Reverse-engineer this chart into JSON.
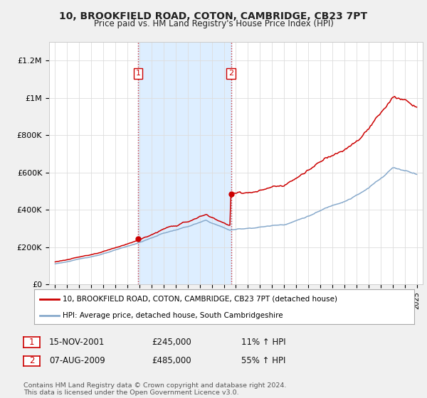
{
  "title": "10, BROOKFIELD ROAD, COTON, CAMBRIDGE, CB23 7PT",
  "subtitle": "Price paid vs. HM Land Registry's House Price Index (HPI)",
  "ylim": [
    0,
    1300000
  ],
  "yticks": [
    0,
    200000,
    400000,
    600000,
    800000,
    1000000,
    1200000
  ],
  "ytick_labels": [
    "£0",
    "£200K",
    "£400K",
    "£600K",
    "£800K",
    "£1M",
    "£1.2M"
  ],
  "purchase1_x": 2001.88,
  "purchase2_x": 2009.6,
  "purchase1_price": 245000,
  "purchase2_price": 485000,
  "line_color_property": "#cc0000",
  "line_color_hpi": "#88aacc",
  "shade_color": "#ddeeff",
  "legend_property": "10, BROOKFIELD ROAD, COTON, CAMBRIDGE, CB23 7PT (detached house)",
  "legend_hpi": "HPI: Average price, detached house, South Cambridgeshire",
  "p1_date": "15-NOV-2001",
  "p2_date": "07-AUG-2009",
  "p1_price_str": "£245,000",
  "p2_price_str": "£485,000",
  "p1_pct": "11% ↑ HPI",
  "p2_pct": "55% ↑ HPI",
  "footer": "Contains HM Land Registry data © Crown copyright and database right 2024.\nThis data is licensed under the Open Government Licence v3.0.",
  "bg_color": "#f0f0f0",
  "plot_bg": "#ffffff",
  "xmin": 1994.5,
  "xmax": 2025.5
}
